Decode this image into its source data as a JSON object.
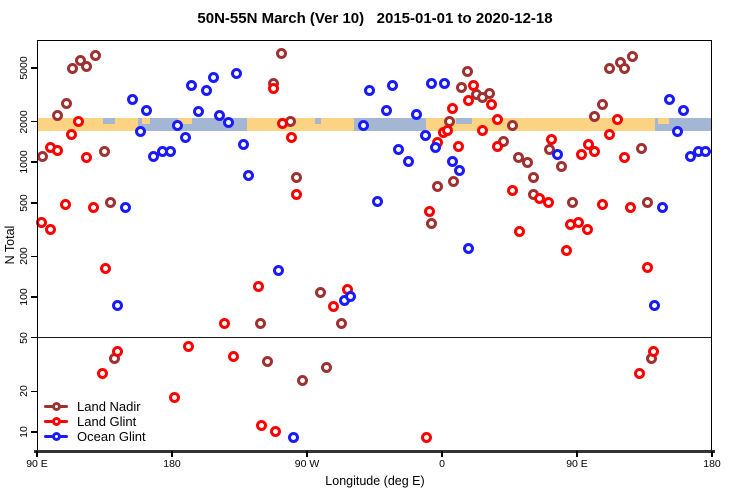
{
  "chart_data": {
    "type": "scatter",
    "title": "50N-55N March (Ver 10)   2015-01-01 to 2020-12-18",
    "xlabel": "Longitude (deg E)",
    "ylabel": "N Total",
    "x_axis": {
      "note": "longitude axis wraps: 90E to 180 then 90W, 0, 90E, 180; stored as degrees 90..540",
      "range": [
        90,
        540
      ],
      "ticks": [
        {
          "pos": 90,
          "label": "90 E"
        },
        {
          "pos": 180,
          "label": "180"
        },
        {
          "pos": 270,
          "label": "90 W"
        },
        {
          "pos": 360,
          "label": "0"
        },
        {
          "pos": 450,
          "label": "90 E"
        },
        {
          "pos": 540,
          "label": "180"
        }
      ]
    },
    "y_axis": {
      "scale": "log",
      "range": [
        7,
        8000
      ],
      "ticks": [
        5000,
        2000,
        1000,
        500,
        200,
        100,
        50,
        20,
        10
      ]
    },
    "reference_line_y": 50,
    "grid": "off",
    "legend_position": "bottom-left",
    "coastline_band": {
      "value_range": [
        1700,
        2130
      ],
      "land_color": "#FBD382",
      "ocean_color": "#A3B7D4",
      "segments": [
        {
          "from": 90,
          "to": 157,
          "type": "land"
        },
        {
          "from": 157,
          "to": 230,
          "type": "ocean"
        },
        {
          "from": 230,
          "to": 301,
          "type": "land"
        },
        {
          "from": 301,
          "to": 349,
          "type": "ocean"
        },
        {
          "from": 349,
          "to": 502,
          "type": "land"
        },
        {
          "from": 502,
          "to": 540,
          "type": "ocean"
        }
      ],
      "specks": [
        {
          "from": 134,
          "to": 142,
          "type": "ocean",
          "half": "top"
        },
        {
          "from": 160,
          "to": 165,
          "type": "land",
          "half": "top"
        },
        {
          "from": 184,
          "to": 193,
          "type": "land",
          "half": "top"
        },
        {
          "from": 275,
          "to": 279,
          "type": "ocean",
          "half": "top"
        },
        {
          "from": 369,
          "to": 380,
          "type": "ocean",
          "half": "top"
        },
        {
          "from": 504,
          "to": 511,
          "type": "land",
          "half": "top"
        }
      ]
    },
    "series": [
      {
        "name": "Land Nadir",
        "color": "#9E3232",
        "points": [
          [
            114,
            4900
          ],
          [
            119,
            5600
          ],
          [
            123,
            5100
          ],
          [
            129,
            6100
          ],
          [
            110,
            2700
          ],
          [
            104,
            2200
          ],
          [
            94,
            1090
          ],
          [
            135,
            1190
          ],
          [
            139,
            500
          ],
          [
            142,
            35
          ],
          [
            253,
            6300
          ],
          [
            248,
            3800
          ],
          [
            259,
            2000
          ],
          [
            263,
            760
          ],
          [
            239,
            63
          ],
          [
            244,
            33
          ],
          [
            283,
            30
          ],
          [
            267,
            24
          ],
          [
            279,
            107
          ],
          [
            293,
            63
          ],
          [
            365,
            2000
          ],
          [
            377,
            4700
          ],
          [
            373,
            3550
          ],
          [
            383,
            3150
          ],
          [
            387,
            3000
          ],
          [
            392,
            3200
          ],
          [
            407,
            1850
          ],
          [
            401,
            1400
          ],
          [
            411,
            1080
          ],
          [
            417,
            990
          ],
          [
            421,
            760
          ],
          [
            421,
            570
          ],
          [
            368,
            710
          ],
          [
            357,
            650
          ],
          [
            353,
            350
          ],
          [
            432,
            1230
          ],
          [
            440,
            920
          ],
          [
            447,
            500
          ],
          [
            462,
            2160
          ],
          [
            467,
            2650
          ],
          [
            472,
            4900
          ],
          [
            479,
            5400
          ],
          [
            482,
            4900
          ],
          [
            487,
            6000
          ],
          [
            493,
            1250
          ],
          [
            497,
            500
          ],
          [
            500,
            35
          ]
        ]
      },
      {
        "name": "Land Glint",
        "color": "#FF0000",
        "points": [
          [
            118,
            2000
          ],
          [
            113,
            1600
          ],
          [
            99,
            1270
          ],
          [
            104,
            1220
          ],
          [
            123,
            1080
          ],
          [
            109,
            480
          ],
          [
            128,
            460
          ],
          [
            93,
            355
          ],
          [
            99,
            315
          ],
          [
            136,
            161
          ],
          [
            134,
            27
          ],
          [
            144,
            39
          ],
          [
            248,
            3500
          ],
          [
            254,
            1920
          ],
          [
            260,
            1510
          ],
          [
            263,
            570
          ],
          [
            238,
            119
          ],
          [
            182,
            18
          ],
          [
            191,
            43
          ],
          [
            221,
            36
          ],
          [
            215,
            63
          ],
          [
            240,
            11
          ],
          [
            249,
            10
          ],
          [
            288,
            85
          ],
          [
            297,
            113
          ],
          [
            350,
            9
          ],
          [
            361,
            1650
          ],
          [
            364,
            1700
          ],
          [
            367,
            2480
          ],
          [
            378,
            2840
          ],
          [
            381,
            3670
          ],
          [
            393,
            2650
          ],
          [
            397,
            2060
          ],
          [
            387,
            1700
          ],
          [
            357,
            1390
          ],
          [
            371,
            1300
          ],
          [
            397,
            1300
          ],
          [
            407,
            610
          ],
          [
            425,
            530
          ],
          [
            431,
            500
          ],
          [
            412,
            305
          ],
          [
            352,
            430
          ],
          [
            433,
            1460
          ],
          [
            443,
            220
          ],
          [
            446,
            343
          ],
          [
            451,
            355
          ],
          [
            457,
            315
          ],
          [
            453,
            1130
          ],
          [
            458,
            1340
          ],
          [
            462,
            1190
          ],
          [
            467,
            480
          ],
          [
            477,
            2060
          ],
          [
            472,
            1600
          ],
          [
            482,
            1080
          ],
          [
            486,
            460
          ],
          [
            497,
            164
          ],
          [
            501,
            39
          ],
          [
            492,
            27
          ]
        ]
      },
      {
        "name": "Ocean Glint",
        "color": "#1A1AFF",
        "points": [
          [
            154,
            2890
          ],
          [
            163,
            2400
          ],
          [
            159,
            1680
          ],
          [
            184,
            1850
          ],
          [
            193,
            3670
          ],
          [
            198,
            2370
          ],
          [
            189,
            1510
          ],
          [
            168,
            1090
          ],
          [
            174,
            1190
          ],
          [
            179,
            1190
          ],
          [
            203,
            3400
          ],
          [
            208,
            4200
          ],
          [
            223,
            4500
          ],
          [
            212,
            2200
          ],
          [
            218,
            1950
          ],
          [
            228,
            1340
          ],
          [
            231,
            790
          ],
          [
            149,
            460
          ],
          [
            144,
            86
          ],
          [
            308,
            1850
          ],
          [
            312,
            3370
          ],
          [
            261,
            9
          ],
          [
            251,
            156
          ],
          [
            295,
            94
          ],
          [
            299,
            100
          ],
          [
            317,
            510
          ],
          [
            323,
            2400
          ],
          [
            343,
            2240
          ],
          [
            327,
            3700
          ],
          [
            349,
            1570
          ],
          [
            356,
            1270
          ],
          [
            331,
            1230
          ],
          [
            338,
            1000
          ],
          [
            367,
            1000
          ],
          [
            372,
            860
          ],
          [
            378,
            227
          ],
          [
            353,
            3770
          ],
          [
            362,
            3800
          ],
          [
            437,
            1130
          ],
          [
            507,
            460
          ],
          [
            502,
            86
          ],
          [
            512,
            2890
          ],
          [
            521,
            2400
          ],
          [
            517,
            1680
          ],
          [
            526,
            1090
          ],
          [
            531,
            1190
          ],
          [
            536,
            1190
          ]
        ]
      }
    ]
  }
}
